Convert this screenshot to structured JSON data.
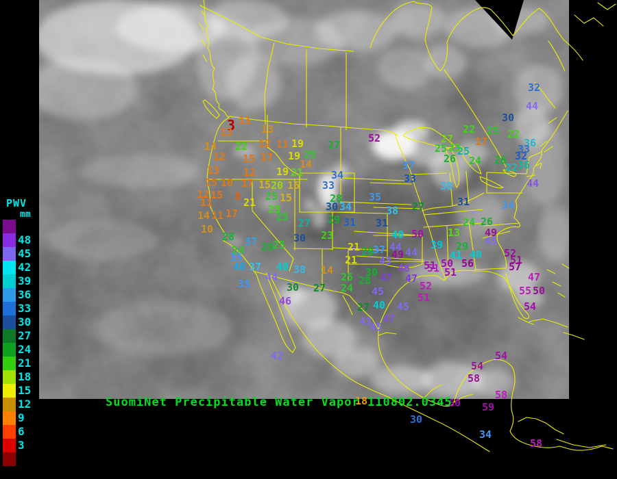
{
  "title": {
    "text": "SuomiNet Precipitable Water Vapor 110802.0345",
    "color": "#00DD22"
  },
  "legend": {
    "title": "PWV",
    "unit": "mm",
    "label_color": "#00E5E5",
    "boxes": [
      {
        "label": "",
        "color": "#7A0D8E"
      },
      {
        "label": "48",
        "color": "#8A2BE2"
      },
      {
        "label": "45",
        "color": "#7B68EE"
      },
      {
        "label": "42",
        "color": "#00E5EE"
      },
      {
        "label": "39",
        "color": "#00CED1"
      },
      {
        "label": "36",
        "color": "#2E9BE8"
      },
      {
        "label": "33",
        "color": "#1E6FD8"
      },
      {
        "label": "30",
        "color": "#1A4F9E"
      },
      {
        "label": "27",
        "color": "#0E7A28"
      },
      {
        "label": "24",
        "color": "#10A020"
      },
      {
        "label": "21",
        "color": "#30D010"
      },
      {
        "label": "18",
        "color": "#A0E000"
      },
      {
        "label": "15",
        "color": "#EEEE00"
      },
      {
        "label": "12",
        "color": "#C89000"
      },
      {
        "label": "9",
        "color": "#FF8000"
      },
      {
        "label": "6",
        "color": "#FF4000"
      },
      {
        "label": "3",
        "color": "#DD0000"
      },
      {
        "label": "",
        "color": "#8B0000"
      }
    ]
  },
  "map": {
    "border_color": "#EDED00",
    "background": "#000000"
  },
  "stations": {
    "format": [
      "value",
      "x",
      "y",
      "color",
      "font_px"
    ],
    "items": [
      [
        "3",
        337,
        184,
        "#B40000",
        20
      ],
      [
        "13",
        330,
        194,
        "#E07818"
      ],
      [
        "11",
        357,
        177,
        "#E07818"
      ],
      [
        "13",
        390,
        190,
        "#D4901C"
      ],
      [
        "14",
        307,
        215,
        "#D4901C"
      ],
      [
        "22",
        352,
        215,
        "#3FD414"
      ],
      [
        "12",
        386,
        211,
        "#E07818"
      ],
      [
        "11",
        412,
        212,
        "#E07818"
      ],
      [
        "19",
        434,
        211,
        "#DCDC00"
      ],
      [
        "12",
        320,
        230,
        "#E07818"
      ],
      [
        "15",
        363,
        233,
        "#E07818"
      ],
      [
        "17",
        389,
        231,
        "#E07818"
      ],
      [
        "19",
        429,
        229,
        "#DCDC00"
      ],
      [
        "25",
        452,
        227,
        "#2FC42F"
      ],
      [
        "27",
        487,
        213,
        "#15B232"
      ],
      [
        "14",
        446,
        241,
        "#D4901C"
      ],
      [
        "13",
        311,
        250,
        "#E07818"
      ],
      [
        "12",
        364,
        253,
        "#E07818"
      ],
      [
        "19",
        412,
        252,
        "#DCDC00"
      ],
      [
        "21",
        433,
        253,
        "#5FD814"
      ],
      [
        "15",
        308,
        268,
        "#E07818"
      ],
      [
        "10",
        331,
        268,
        "#E07818"
      ],
      [
        "17",
        361,
        269,
        "#E07818"
      ],
      [
        "15",
        386,
        271,
        "#D4B41C"
      ],
      [
        "20",
        404,
        272,
        "#9ED80A"
      ],
      [
        "16",
        428,
        272,
        "#D4B41C"
      ],
      [
        "12",
        296,
        285,
        "#E07818"
      ],
      [
        "15",
        316,
        286,
        "#E07818"
      ],
      [
        "8",
        347,
        288,
        "#E06010"
      ],
      [
        "21",
        364,
        297,
        "#DCDC00"
      ],
      [
        "25",
        396,
        288,
        "#2FC42F"
      ],
      [
        "15",
        417,
        290,
        "#D4B41C"
      ],
      [
        "11",
        301,
        297,
        "#E07818"
      ],
      [
        "23",
        400,
        307,
        "#3FD414"
      ],
      [
        "14",
        297,
        316,
        "#D4901C"
      ],
      [
        "11",
        317,
        316,
        "#E07818"
      ],
      [
        "17",
        338,
        313,
        "#E07818"
      ],
      [
        "25",
        412,
        318,
        "#2FC42F"
      ],
      [
        "27",
        444,
        327,
        "#16AFA3"
      ],
      [
        "10",
        302,
        336,
        "#D4901C"
      ],
      [
        "28",
        333,
        347,
        "#15B232"
      ],
      [
        "24",
        347,
        367,
        "#2FC42F"
      ],
      [
        "37",
        366,
        354,
        "#35A0E8"
      ],
      [
        "35",
        344,
        377,
        "#3E97EE"
      ],
      [
        "30",
        437,
        349,
        "#1B4F9E"
      ],
      [
        "23",
        477,
        345,
        "#3FD414"
      ],
      [
        "28",
        390,
        362,
        "#15B232"
      ],
      [
        "25",
        407,
        359,
        "#2FC42F"
      ],
      [
        "40",
        349,
        391,
        "#18A8E8"
      ],
      [
        "37",
        372,
        391,
        "#35C0E8"
      ],
      [
        "40",
        412,
        391,
        "#00CED1"
      ],
      [
        "38",
        437,
        395,
        "#38B8E8"
      ],
      [
        "44",
        396,
        406,
        "#8468F0"
      ],
      [
        "35",
        356,
        416,
        "#3E97EE"
      ],
      [
        "30",
        427,
        421,
        "#0F8A2E"
      ],
      [
        "27",
        466,
        422,
        "#0F8A2E"
      ],
      [
        "14",
        477,
        396,
        "#D4901C"
      ],
      [
        "46",
        416,
        441,
        "#9048E0"
      ],
      [
        "42",
        404,
        521,
        "#8468F0"
      ],
      [
        "34",
        492,
        257,
        "#2E6FD0"
      ],
      [
        "33",
        479,
        272,
        "#2E6FD0"
      ],
      [
        "28",
        490,
        291,
        "#15B232"
      ],
      [
        "30",
        484,
        303,
        "#1B4F9E"
      ],
      [
        "34",
        504,
        303,
        "#38B8E8"
      ],
      [
        "29",
        487,
        322,
        "#15B232"
      ],
      [
        "31",
        510,
        326,
        "#2060C0"
      ],
      [
        "52",
        546,
        203,
        "#981098"
      ],
      [
        "35",
        547,
        289,
        "#3E97EE"
      ],
      [
        "37",
        596,
        243,
        "#3E97EE"
      ],
      [
        "33",
        598,
        262,
        "#1B55B0"
      ],
      [
        "38",
        572,
        309,
        "#38C0E8"
      ],
      [
        "27",
        610,
        303,
        "#0F8A2E"
      ],
      [
        "31",
        557,
        327,
        "#1B4F9E"
      ],
      [
        "40",
        580,
        344,
        "#00CED1"
      ],
      [
        "50",
        609,
        343,
        "#A010A8"
      ],
      [
        "21",
        516,
        362,
        "#DCDC00"
      ],
      [
        "28",
        536,
        369,
        "#15B232"
      ],
      [
        "37",
        553,
        366,
        "#35A0E8"
      ],
      [
        "44",
        577,
        362,
        "#8468F0"
      ],
      [
        "49",
        580,
        373,
        "#981098"
      ],
      [
        "44",
        600,
        370,
        "#8468F0"
      ],
      [
        "21",
        512,
        381,
        "#DCDC00"
      ],
      [
        "43",
        562,
        382,
        "#8468F0"
      ],
      [
        "46",
        589,
        393,
        "#9048E0"
      ],
      [
        "51",
        632,
        393,
        "#BE18BE"
      ],
      [
        "30",
        542,
        399,
        "#15B232"
      ],
      [
        "25",
        506,
        406,
        "#2FC42F"
      ],
      [
        "28",
        532,
        411,
        "#15B232"
      ],
      [
        "47",
        563,
        407,
        "#8040D8"
      ],
      [
        "47",
        600,
        408,
        "#8040D8"
      ],
      [
        "24",
        506,
        422,
        "#2FC42F"
      ],
      [
        "45",
        551,
        427,
        "#8468F0"
      ],
      [
        "52",
        621,
        419,
        "#BE18BE"
      ],
      [
        "51",
        618,
        436,
        "#BE18BE"
      ],
      [
        "27",
        530,
        450,
        "#0F8A2E"
      ],
      [
        "40",
        553,
        447,
        "#00CED1"
      ],
      [
        "45",
        588,
        449,
        "#8468F0"
      ],
      [
        "43",
        533,
        471,
        "#8468F0"
      ],
      [
        "47",
        567,
        467,
        "#8455E0"
      ],
      [
        "45",
        548,
        479,
        "#8468F0"
      ],
      [
        "13",
        662,
        341,
        "#50E010"
      ],
      [
        "49",
        716,
        341,
        "#981098"
      ],
      [
        "45",
        716,
        353,
        "#8468F0"
      ],
      [
        "39",
        637,
        359,
        "#00C8D8"
      ],
      [
        "29",
        674,
        361,
        "#15B232"
      ],
      [
        "41",
        665,
        374,
        "#00CED1"
      ],
      [
        "40",
        694,
        373,
        "#00CED1"
      ],
      [
        "52",
        744,
        371,
        "#981098"
      ],
      [
        "51",
        753,
        381,
        "#981098"
      ],
      [
        "57",
        751,
        391,
        "#990098"
      ],
      [
        "51",
        627,
        389,
        "#A010A8"
      ],
      [
        "50",
        652,
        386,
        "#A010A8"
      ],
      [
        "56",
        682,
        386,
        "#990098"
      ],
      [
        "51",
        657,
        399,
        "#A010A8"
      ],
      [
        "47",
        779,
        406,
        "#BE18BE"
      ],
      [
        "55",
        766,
        426,
        "#BE18BE"
      ],
      [
        "50",
        786,
        426,
        "#981098"
      ],
      [
        "54",
        773,
        449,
        "#A010A8"
      ],
      [
        "22",
        684,
        190,
        "#3FD414"
      ],
      [
        "17",
        702,
        208,
        "#E07818"
      ],
      [
        "27",
        652,
        204,
        "#6FD40A"
      ],
      [
        "25",
        643,
        218,
        "#2FC42F"
      ],
      [
        "23",
        663,
        217,
        "#3FD414"
      ],
      [
        "25",
        676,
        222,
        "#16AFA3"
      ],
      [
        "26",
        656,
        233,
        "#15B232"
      ],
      [
        "24",
        693,
        236,
        "#2FC42F"
      ],
      [
        "26",
        730,
        235,
        "#15B232"
      ],
      [
        "22",
        749,
        197,
        "#3FD414"
      ],
      [
        "25",
        719,
        192,
        "#2FC42F"
      ],
      [
        "32",
        779,
        129,
        "#2E6FD0"
      ],
      [
        "44",
        776,
        156,
        "#8468F0"
      ],
      [
        "30",
        741,
        173,
        "#1B4F9E"
      ],
      [
        "36",
        773,
        210,
        "#20B8C8"
      ],
      [
        "33",
        764,
        219,
        "#2E6FD0"
      ],
      [
        "32",
        760,
        229,
        "#2060C0"
      ],
      [
        "36",
        764,
        242,
        "#16AFA3"
      ],
      [
        "22",
        746,
        246,
        "#20B8B0"
      ],
      [
        "44",
        777,
        269,
        "#8455E0"
      ],
      [
        "34",
        741,
        301,
        "#3E97EE"
      ],
      [
        "24",
        684,
        326,
        "#2FC42F"
      ],
      [
        "26",
        710,
        325,
        "#15B232"
      ],
      [
        "38",
        651,
        273,
        "#38B8E8"
      ],
      [
        "31",
        676,
        296,
        "#1B4F9E"
      ],
      [
        "54",
        731,
        521,
        "#A010A8"
      ],
      [
        "54",
        696,
        536,
        "#981098"
      ],
      [
        "58",
        691,
        554,
        "#981098"
      ],
      [
        "58",
        731,
        578,
        "#BE18BE"
      ],
      [
        "60",
        663,
        590,
        "#A010A8"
      ],
      [
        "59",
        712,
        596,
        "#A010A8"
      ],
      [
        "30",
        607,
        614,
        "#2E6FD0"
      ],
      [
        "34",
        708,
        636,
        "#3E97EE"
      ],
      [
        "58",
        782,
        649,
        "#BE18BE"
      ],
      [
        "18",
        527,
        587,
        "#E8A000"
      ]
    ]
  }
}
